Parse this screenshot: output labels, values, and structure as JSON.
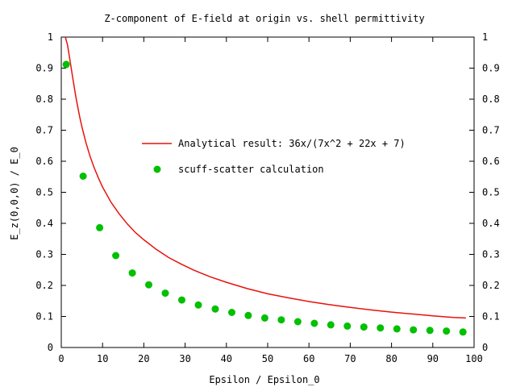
{
  "chart_data": {
    "type": "line",
    "title": "Z-component of E-field at origin vs. shell permittivity",
    "xlabel": "Epsilon / Epsilon_0",
    "ylabel": "E_z(0,0,0) / E_0",
    "xlim": [
      0,
      100
    ],
    "ylim": [
      0,
      1
    ],
    "xticks": [
      0,
      10,
      20,
      30,
      40,
      50,
      60,
      70,
      80,
      90,
      100
    ],
    "yticks": [
      0,
      0.1,
      0.2,
      0.3,
      0.4,
      0.5,
      0.6,
      0.7,
      0.8,
      0.9,
      1
    ],
    "tick_labels_mirrored_right": true,
    "grid": false,
    "legend_position": "center-right",
    "series": [
      {
        "name": "Analytical result: 36x/(7x^2 + 22x + 7)",
        "kind": "line",
        "color": "#e8120c",
        "x": [
          1,
          1.5,
          2,
          2.5,
          3,
          3.5,
          4,
          4.5,
          5,
          6,
          7,
          8,
          9,
          10,
          12,
          14,
          16,
          18,
          20,
          23,
          26,
          29,
          32,
          36,
          40,
          45,
          50,
          55,
          60,
          65,
          70,
          75,
          80,
          85,
          90,
          95,
          98
        ],
        "y": [
          1.0,
          0.975,
          0.935,
          0.892,
          0.85,
          0.81,
          0.774,
          0.741,
          0.711,
          0.659,
          0.615,
          0.578,
          0.546,
          0.517,
          0.469,
          0.431,
          0.398,
          0.37,
          0.347,
          0.316,
          0.29,
          0.269,
          0.25,
          0.228,
          0.21,
          0.19,
          0.173,
          0.16,
          0.148,
          0.138,
          0.129,
          0.121,
          0.114,
          0.108,
          0.102,
          0.097,
          0.095
        ]
      },
      {
        "name": "scuff-scatter calculation",
        "kind": "points",
        "color": "#00c000",
        "x": [
          1.2,
          5.3,
          9.3,
          13.2,
          17.2,
          21.2,
          25.2,
          29.2,
          33.2,
          37.3,
          41.3,
          45.3,
          49.3,
          53.3,
          57.3,
          61.3,
          65.3,
          69.3,
          73.3,
          77.3,
          81.3,
          85.3,
          89.3,
          93.3,
          97.3
        ],
        "y": [
          0.912,
          0.552,
          0.386,
          0.296,
          0.24,
          0.202,
          0.175,
          0.153,
          0.137,
          0.124,
          0.113,
          0.103,
          0.095,
          0.089,
          0.083,
          0.078,
          0.073,
          0.069,
          0.066,
          0.063,
          0.06,
          0.057,
          0.055,
          0.053,
          0.05
        ]
      }
    ]
  }
}
